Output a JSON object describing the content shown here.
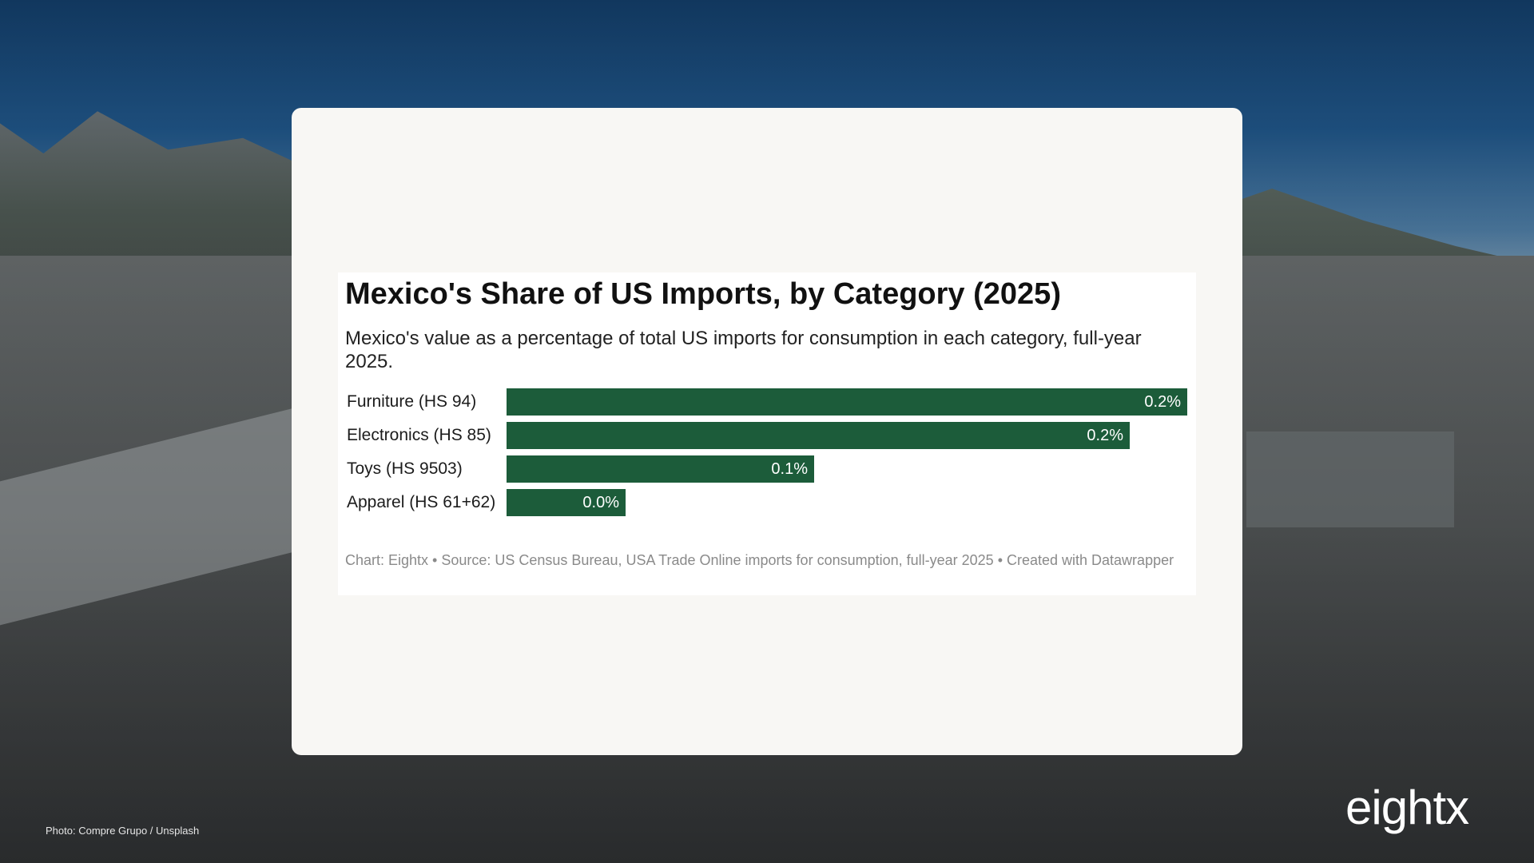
{
  "chart_data": {
    "type": "bar",
    "orientation": "horizontal",
    "title": "Mexico's Share of US Imports, by Category (2025)",
    "subtitle": "Mexico's value as a percentage of total US imports for consumption in each category, full-year 2025.",
    "categories": [
      "Furniture (HS 94)",
      "Electronics (HS 85)",
      "Toys (HS 9503)",
      "Apparel (HS 61+62)"
    ],
    "values": [
      0.2,
      0.2,
      0.1,
      0.0
    ],
    "bar_fill_fraction": [
      1.0,
      0.916,
      0.452,
      0.175
    ],
    "value_labels": [
      "0.2%",
      "0.2%",
      "0.1%",
      "0.0%"
    ],
    "xlabel": "",
    "ylabel": "",
    "grid": false,
    "bar_color": "#1c5c3a",
    "notes": "Chart: Eightx • Source: US Census Bureau, USA Trade Online imports for consumption, full-year 2025 • Created with Datawrapper"
  },
  "photo_credit": "Photo: Compre Grupo / Unsplash",
  "logo": "eightx"
}
